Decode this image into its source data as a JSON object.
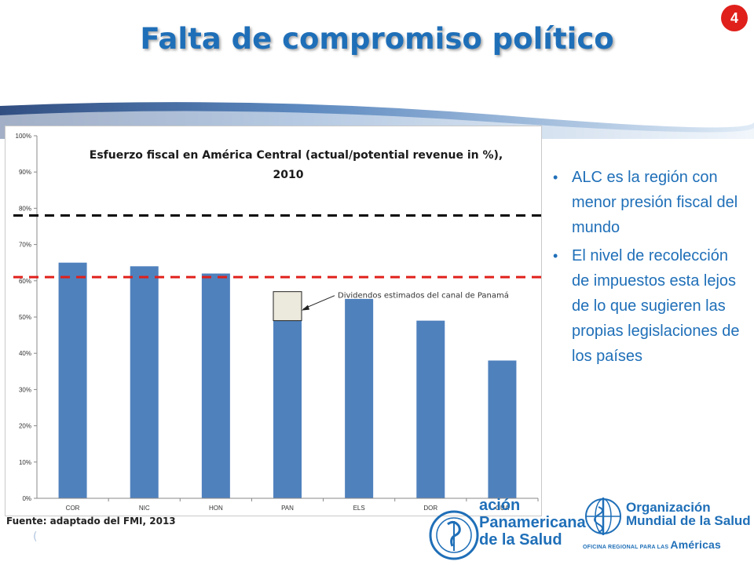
{
  "slide": {
    "title": "Falta de compromiso político",
    "badge": "4",
    "source": "Fuente: adaptado del FMI, 2013",
    "small_mark": "("
  },
  "bullets": [
    "ALC es la región con menor presión fiscal del mundo",
    "El nivel de recolección de impuestos esta lejos de lo que sugieren las propias legislaciones de los países"
  ],
  "logos": {
    "paho_lines": [
      "ación",
      "Panamericana",
      "de la Salud"
    ],
    "who_lines": [
      "Organización",
      "Mundial de la Salud"
    ],
    "who_sub": "OFICINA REGIONAL PARA LAS",
    "who_region": "Américas"
  },
  "colors": {
    "title": "#1f6fb8",
    "bar": "#4f81bd",
    "black_dash": "#000000",
    "red_dash": "#e0201b",
    "badge": "#e0201b"
  },
  "chart_data": {
    "type": "bar",
    "title_line1": "Esfuerzo fiscal en América Central (actual/potential  revenue in %),",
    "title_line2": "2010",
    "categories": [
      "COR",
      "NIC",
      "HON",
      "PAN",
      "ELS",
      "DOR",
      "GUA"
    ],
    "values": [
      65,
      64,
      62,
      49,
      55,
      49,
      38
    ],
    "ylim": [
      0,
      100
    ],
    "yticks": [
      "0%",
      "10%",
      "20%",
      "30%",
      "40%",
      "50%",
      "60%",
      "70%",
      "80%",
      "90%",
      "100%"
    ],
    "grid": false,
    "reference_lines": [
      {
        "value": 78,
        "color": "black",
        "style": "dashed"
      },
      {
        "value": 61,
        "color": "red",
        "style": "dashed"
      }
    ],
    "annotation": {
      "text": "Dividendos estimados del canal de Panamá",
      "category": "PAN",
      "base_value": 49,
      "top_value": 57
    }
  }
}
